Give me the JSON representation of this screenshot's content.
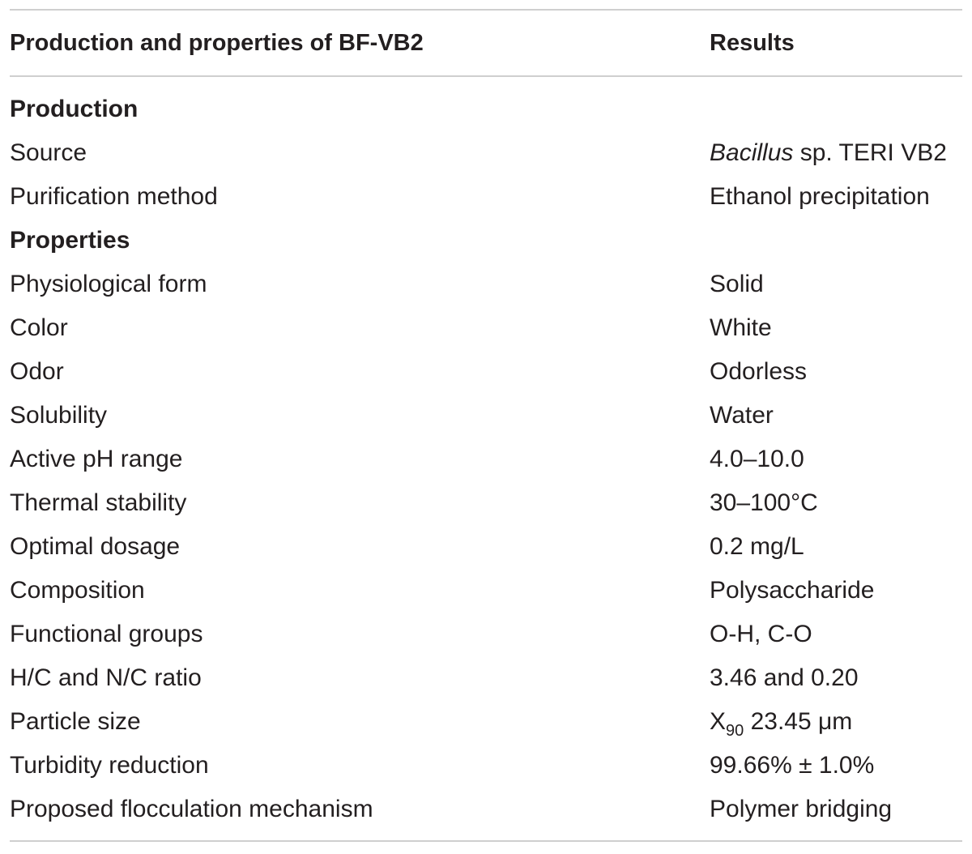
{
  "table": {
    "header": {
      "col1": "Production and properties of BF-VB2",
      "col2": "Results"
    },
    "sections": [
      {
        "title": "Production",
        "rows": [
          {
            "label": "Source",
            "value_italic": "Bacillus",
            "value_rest": " sp. TERI VB2"
          },
          {
            "label": "Purification method",
            "value": "Ethanol precipitation"
          }
        ]
      },
      {
        "title": "Properties",
        "rows": [
          {
            "label": "Physiological form",
            "value": "Solid"
          },
          {
            "label": "Color",
            "value": "White"
          },
          {
            "label": "Odor",
            "value": "Odorless"
          },
          {
            "label": "Solubility",
            "value": "Water"
          },
          {
            "label": "Active pH range",
            "value": "4.0–10.0"
          },
          {
            "label": "Thermal stability",
            "value": "30–100°C"
          },
          {
            "label": "Optimal dosage",
            "value": "0.2 mg/L"
          },
          {
            "label": "Composition",
            "value": "Polysaccharide"
          },
          {
            "label": "Functional groups",
            "value": "O-H, C-O"
          },
          {
            "label": "H/C and N/C ratio",
            "value": "3.46 and 0.20"
          },
          {
            "label": "Particle size",
            "value_main": "X",
            "value_sub": "90",
            "value_rest": " 23.45 μm"
          },
          {
            "label": "Turbidity reduction",
            "value": "99.66% ± 1.0%"
          },
          {
            "label": "Proposed flocculation mechanism",
            "value": "Polymer bridging"
          }
        ]
      }
    ]
  }
}
